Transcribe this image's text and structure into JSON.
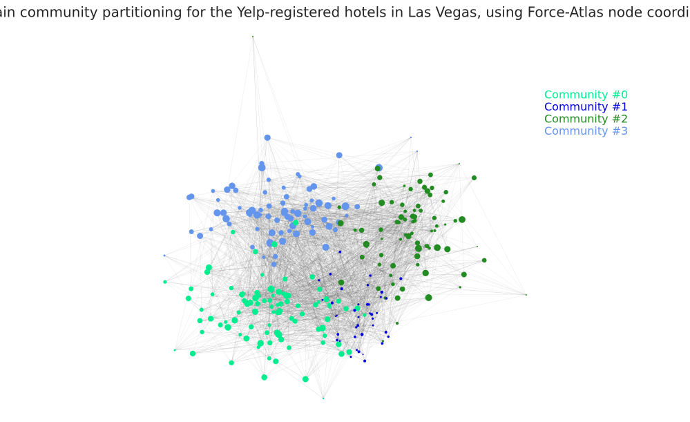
{
  "title": "Louvain community partitioning for the Yelp-registered hotels in Las Vegas, using Force-Atlas node coordinates",
  "legend": [
    {
      "label": "Community #0",
      "color": "#00ee90"
    },
    {
      "label": "Community #1",
      "color": "#0000e0"
    },
    {
      "label": "Community #2",
      "color": "#228b22"
    },
    {
      "label": "Community #3",
      "color": "#6495ed"
    }
  ]
}
